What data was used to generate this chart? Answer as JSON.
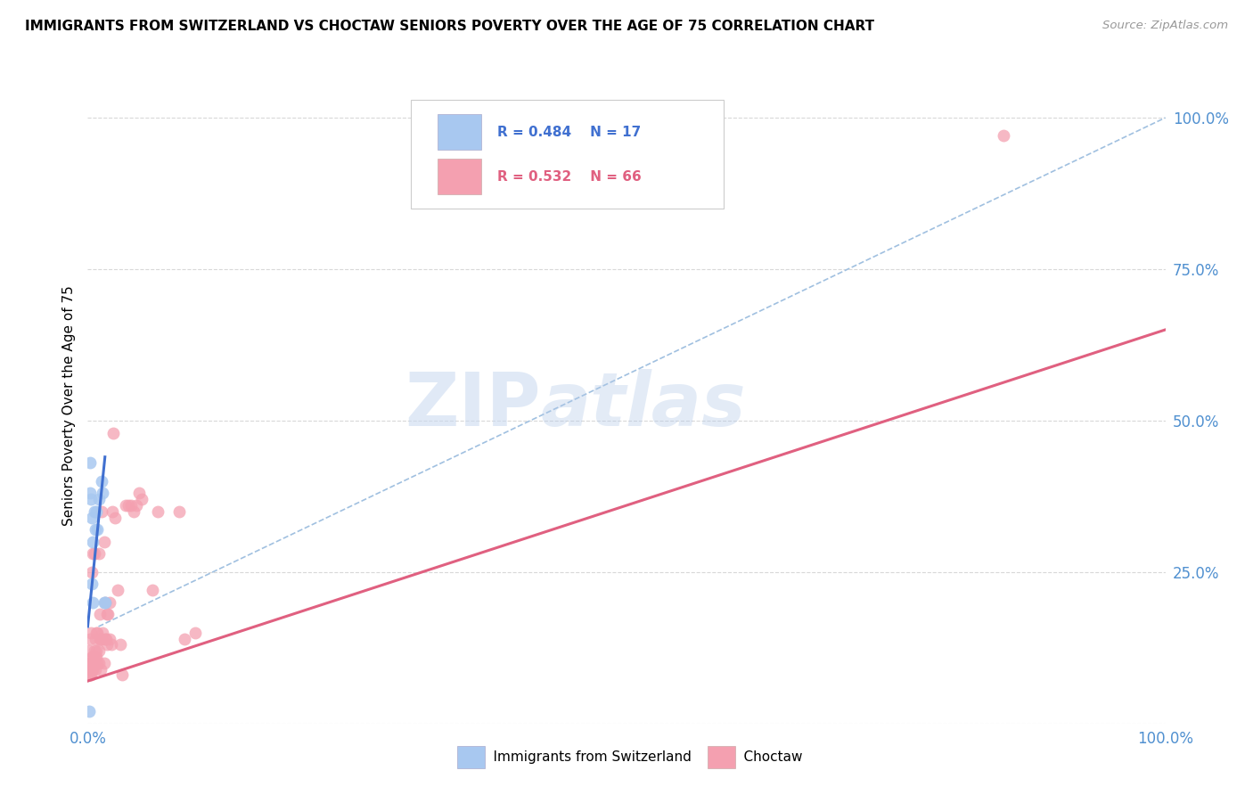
{
  "title": "IMMIGRANTS FROM SWITZERLAND VS CHOCTAW SENIORS POVERTY OVER THE AGE OF 75 CORRELATION CHART",
  "source": "Source: ZipAtlas.com",
  "ylabel": "Seniors Poverty Over the Age of 75",
  "watermark_zip": "ZIP",
  "watermark_atlas": "atlas",
  "legend_blue_r": "R = 0.484",
  "legend_blue_n": "N = 17",
  "legend_pink_r": "R = 0.532",
  "legend_pink_n": "N = 66",
  "blue_color": "#A8C8F0",
  "pink_color": "#F4A0B0",
  "blue_line_color": "#4070D0",
  "pink_line_color": "#E06080",
  "dashed_line_color": "#A0C0E0",
  "background_color": "#FFFFFF",
  "grid_color": "#D8D8D8",
  "right_axis_color": "#5090D0",
  "bottom_axis_color": "#5090D0",
  "blue_scatter_x": [
    0.001,
    0.002,
    0.002,
    0.003,
    0.004,
    0.004,
    0.005,
    0.005,
    0.006,
    0.007,
    0.008,
    0.009,
    0.01,
    0.013,
    0.014,
    0.015,
    0.016
  ],
  "blue_scatter_y": [
    0.02,
    0.38,
    0.43,
    0.37,
    0.34,
    0.23,
    0.2,
    0.3,
    0.35,
    0.32,
    0.35,
    0.32,
    0.37,
    0.4,
    0.38,
    0.2,
    0.2
  ],
  "pink_scatter_x": [
    0.001,
    0.001,
    0.001,
    0.002,
    0.002,
    0.002,
    0.003,
    0.003,
    0.003,
    0.004,
    0.004,
    0.004,
    0.005,
    0.005,
    0.005,
    0.006,
    0.006,
    0.006,
    0.007,
    0.007,
    0.007,
    0.008,
    0.008,
    0.008,
    0.009,
    0.009,
    0.01,
    0.01,
    0.01,
    0.011,
    0.011,
    0.012,
    0.012,
    0.013,
    0.013,
    0.014,
    0.015,
    0.015,
    0.016,
    0.016,
    0.017,
    0.018,
    0.018,
    0.019,
    0.02,
    0.02,
    0.022,
    0.023,
    0.024,
    0.025,
    0.028,
    0.03,
    0.032,
    0.035,
    0.038,
    0.04,
    0.043,
    0.045,
    0.048,
    0.05,
    0.06,
    0.065,
    0.085,
    0.09,
    0.1,
    0.85
  ],
  "pink_scatter_y": [
    0.08,
    0.1,
    0.12,
    0.08,
    0.1,
    0.14,
    0.08,
    0.1,
    0.15,
    0.09,
    0.11,
    0.25,
    0.09,
    0.11,
    0.28,
    0.1,
    0.12,
    0.28,
    0.09,
    0.11,
    0.14,
    0.12,
    0.15,
    0.11,
    0.1,
    0.15,
    0.12,
    0.1,
    0.28,
    0.14,
    0.18,
    0.09,
    0.14,
    0.14,
    0.35,
    0.15,
    0.1,
    0.3,
    0.14,
    0.2,
    0.14,
    0.18,
    0.13,
    0.18,
    0.14,
    0.2,
    0.13,
    0.35,
    0.48,
    0.34,
    0.22,
    0.13,
    0.08,
    0.36,
    0.36,
    0.36,
    0.35,
    0.36,
    0.38,
    0.37,
    0.22,
    0.35,
    0.35,
    0.14,
    0.15,
    0.97
  ],
  "blue_line_x": [
    0.0,
    0.016
  ],
  "blue_line_y": [
    0.16,
    0.44
  ],
  "pink_line_x": [
    0.0,
    1.0
  ],
  "pink_line_y": [
    0.07,
    0.65
  ],
  "dashed_line_x": [
    0.01,
    1.0
  ],
  "dashed_line_y": [
    0.16,
    1.0
  ],
  "xlim": [
    0.0,
    1.0
  ],
  "ylim": [
    0.0,
    1.05
  ],
  "yticks": [
    0.0,
    0.25,
    0.5,
    0.75,
    1.0
  ],
  "ytick_labels": [
    "",
    "25.0%",
    "50.0%",
    "75.0%",
    "100.0%"
  ],
  "xtick_positions": [
    0.0,
    0.25,
    0.5,
    0.75,
    1.0
  ],
  "xtick_labels": [
    "0.0%",
    "",
    "",
    "",
    "100.0%"
  ],
  "figsize": [
    14.06,
    8.92
  ],
  "dpi": 100
}
